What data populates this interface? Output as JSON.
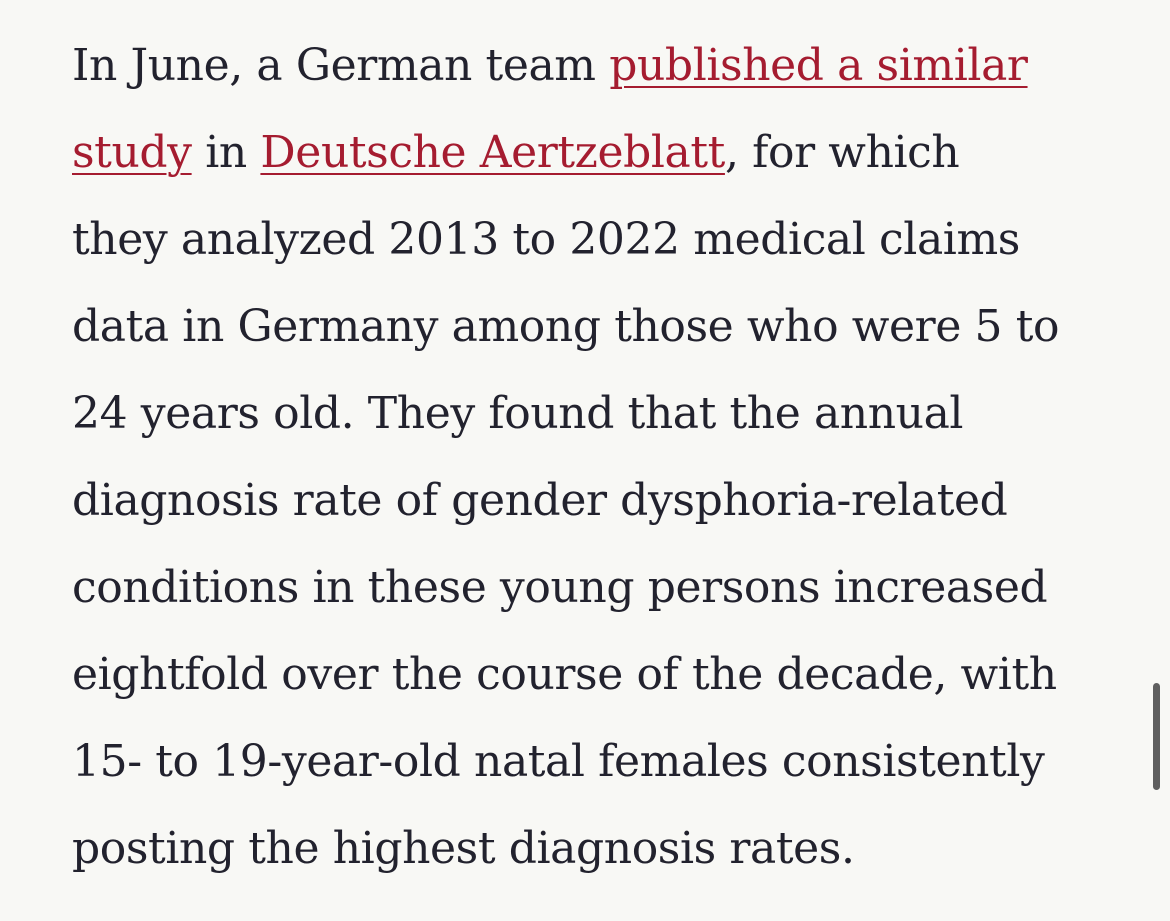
{
  "article": {
    "lines": {
      "l1_text": "In June, a German team ",
      "l1_link": "published a similar",
      "l2_link1": "study",
      "l2_mid": " in ",
      "l2_link2": "Deutsche Aertzeblatt",
      "l2_rest": ", for which",
      "l3": "they analyzed 2013 to 2022 medical claims",
      "l4": "data in Germany among those who were 5 to",
      "l5": "24 years old. They found that the annual",
      "l6": "diagnosis rate of gender dysphoria-related",
      "l7": "conditions in these young persons increased",
      "l8": "eightfold over the course of the decade, with",
      "l9": "15- to 19-year-old natal females consistently",
      "l10": "posting the highest diagnosis rates."
    }
  },
  "colors": {
    "background": "#f8f8f5",
    "text": "#22222e",
    "link": "#a51c30",
    "scrollbar": "#5f5f5f"
  }
}
